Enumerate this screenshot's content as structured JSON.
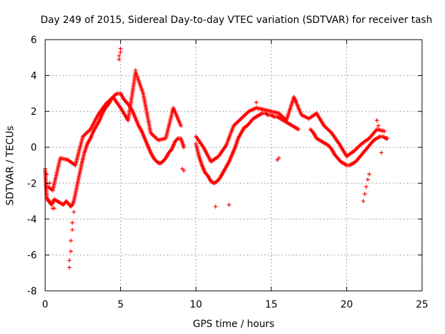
{
  "chart_data": {
    "type": "scatter",
    "title": "Day 249 of 2015, Sidereal Day-to-day VTEC variation (SDTVAR) for receiver tash",
    "xlabel": "GPS time / hours",
    "ylabel": "SDTVAR / TECUs",
    "xlim": [
      0,
      25
    ],
    "ylim": [
      -8,
      6
    ],
    "xticks": [
      0,
      5,
      10,
      15,
      20,
      25
    ],
    "yticks": [
      -8,
      -6,
      -4,
      -2,
      0,
      2,
      4,
      6
    ],
    "grid": true,
    "marker": "+",
    "series": [
      {
        "name": "SDTVAR",
        "color": "#ff0000",
        "trend": {
          "x": [
            0.0,
            0.1,
            0.2,
            0.3,
            0.4,
            0.5,
            0.6,
            0.8,
            1.0,
            1.2,
            1.4,
            1.6,
            1.7,
            1.8,
            1.9,
            2.0,
            2.2,
            2.4,
            2.6,
            2.8,
            3.0,
            3.2,
            3.4,
            3.6,
            3.8,
            4.0,
            4.2,
            4.4,
            4.6,
            4.8,
            5.0,
            5.2,
            5.4,
            5.6,
            5.8,
            6.0,
            6.2,
            6.4,
            6.6,
            6.8,
            7.0,
            7.2,
            7.4,
            7.6,
            7.8,
            8.0,
            8.2,
            8.4,
            8.6,
            8.8,
            9.0,
            9.2,
            10.0,
            10.2,
            10.4,
            10.6,
            10.8,
            11.0,
            11.2,
            11.4,
            11.6,
            11.8,
            12.0,
            12.2,
            12.4,
            12.6,
            12.8,
            13.0,
            13.2,
            13.4,
            13.6,
            13.8,
            14.0,
            14.2,
            14.4,
            14.6,
            14.8,
            15.0,
            15.2,
            15.4,
            15.6,
            15.8,
            16.0,
            16.2,
            16.4,
            16.6,
            16.8,
            17.6,
            17.8,
            18.0,
            18.2,
            18.4,
            18.6,
            18.8,
            19.0,
            19.2,
            19.4,
            19.6,
            19.8,
            20.0,
            20.2,
            20.4,
            20.6,
            20.8,
            21.0,
            21.2,
            21.4,
            21.6,
            21.8,
            22.0,
            22.2,
            22.4,
            22.6,
            22.7
          ],
          "y": [
            -1.3,
            -2.8,
            -3.0,
            -3.0,
            -3.2,
            -3.1,
            -2.9,
            -3.0,
            -3.1,
            -3.2,
            -3.0,
            -3.2,
            -3.3,
            -3.2,
            -3.0,
            -2.6,
            -1.8,
            -1.0,
            -0.3,
            0.2,
            0.5,
            0.9,
            1.2,
            1.5,
            1.9,
            2.2,
            2.4,
            2.7,
            2.9,
            3.0,
            3.0,
            2.7,
            2.5,
            2.3,
            2.0,
            1.6,
            1.2,
            0.9,
            0.5,
            0.1,
            -0.3,
            -0.6,
            -0.8,
            -0.9,
            -0.8,
            -0.6,
            -0.3,
            -0.1,
            0.3,
            0.5,
            0.5,
            0.0,
            0.2,
            -0.5,
            -1.0,
            -1.4,
            -1.6,
            -1.9,
            -2.0,
            -1.9,
            -1.7,
            -1.4,
            -1.1,
            -0.8,
            -0.4,
            0.0,
            0.5,
            0.8,
            1.1,
            1.2,
            1.4,
            1.6,
            1.7,
            1.8,
            1.9,
            1.9,
            1.8,
            1.8,
            1.7,
            1.7,
            1.6,
            1.5,
            1.4,
            1.3,
            1.2,
            1.1,
            1.0,
            1.0,
            0.8,
            0.5,
            0.4,
            0.3,
            0.2,
            0.1,
            -0.1,
            -0.4,
            -0.6,
            -0.8,
            -0.9,
            -1.0,
            -1.0,
            -0.9,
            -0.8,
            -0.6,
            -0.4,
            -0.2,
            0.0,
            0.2,
            0.4,
            0.5,
            0.6,
            0.6,
            0.5,
            0.5
          ]
        },
        "band": {
          "x": [
            0.2,
            0.5,
            1.0,
            1.5,
            2.0,
            2.5,
            3.0,
            3.5,
            4.0,
            4.5,
            5.0,
            5.5,
            6.0,
            6.5,
            7.0,
            7.5,
            8.0,
            8.5,
            9.0,
            10.0,
            10.5,
            11.0,
            11.5,
            12.0,
            12.5,
            13.0,
            13.5,
            14.0,
            14.5,
            15.0,
            15.5,
            16.0,
            16.5,
            17.0,
            17.5,
            18.0,
            18.5,
            19.0,
            19.5,
            20.0,
            20.5,
            21.0,
            21.5,
            22.0,
            22.5
          ],
          "y": [
            -2.2,
            -2.4,
            -0.6,
            -0.7,
            -1.0,
            0.6,
            1.0,
            1.8,
            2.4,
            2.8,
            2.2,
            1.5,
            4.2,
            3.0,
            0.8,
            0.4,
            0.5,
            2.2,
            1.2,
            0.6,
            0.0,
            -0.8,
            -0.5,
            0.1,
            1.2,
            1.6,
            2.0,
            2.2,
            2.1,
            2.0,
            1.9,
            1.5,
            2.8,
            1.8,
            1.6,
            1.9,
            1.2,
            0.8,
            0.2,
            -0.5,
            -0.2,
            0.2,
            0.5,
            1.0,
            0.9
          ]
        },
        "spikes": [
          {
            "x": 1.6,
            "y": -6.7
          },
          {
            "x": 1.6,
            "y": -6.3
          },
          {
            "x": 1.7,
            "y": -5.8
          },
          {
            "x": 1.7,
            "y": -5.2
          },
          {
            "x": 1.8,
            "y": -4.6
          },
          {
            "x": 1.8,
            "y": -4.2
          },
          {
            "x": 1.9,
            "y": -3.6
          },
          {
            "x": 4.9,
            "y": 4.9
          },
          {
            "x": 4.9,
            "y": 5.1
          },
          {
            "x": 5.0,
            "y": 5.3
          },
          {
            "x": 5.0,
            "y": 5.5
          },
          {
            "x": 6.0,
            "y": 4.3
          },
          {
            "x": 8.5,
            "y": 2.1
          },
          {
            "x": 9.1,
            "y": -1.2
          },
          {
            "x": 9.2,
            "y": -1.3
          },
          {
            "x": 12.2,
            "y": -3.2
          },
          {
            "x": 11.3,
            "y": -3.3
          },
          {
            "x": 14.0,
            "y": 2.5
          },
          {
            "x": 16.5,
            "y": 2.8
          },
          {
            "x": 16.6,
            "y": 2.6
          },
          {
            "x": 15.4,
            "y": -0.7
          },
          {
            "x": 15.5,
            "y": -0.6
          },
          {
            "x": 21.1,
            "y": -3.0
          },
          {
            "x": 21.2,
            "y": -2.6
          },
          {
            "x": 21.3,
            "y": -2.2
          },
          {
            "x": 21.4,
            "y": -1.8
          },
          {
            "x": 21.5,
            "y": -1.5
          },
          {
            "x": 22.0,
            "y": 1.5
          },
          {
            "x": 22.1,
            "y": 1.2
          },
          {
            "x": 22.3,
            "y": -0.3
          },
          {
            "x": 0.0,
            "y": -1.2
          },
          {
            "x": 0.1,
            "y": -1.5
          },
          {
            "x": 0.3,
            "y": -2.0
          },
          {
            "x": 0.5,
            "y": -3.4
          },
          {
            "x": 0.6,
            "y": -3.4
          }
        ]
      }
    ]
  }
}
